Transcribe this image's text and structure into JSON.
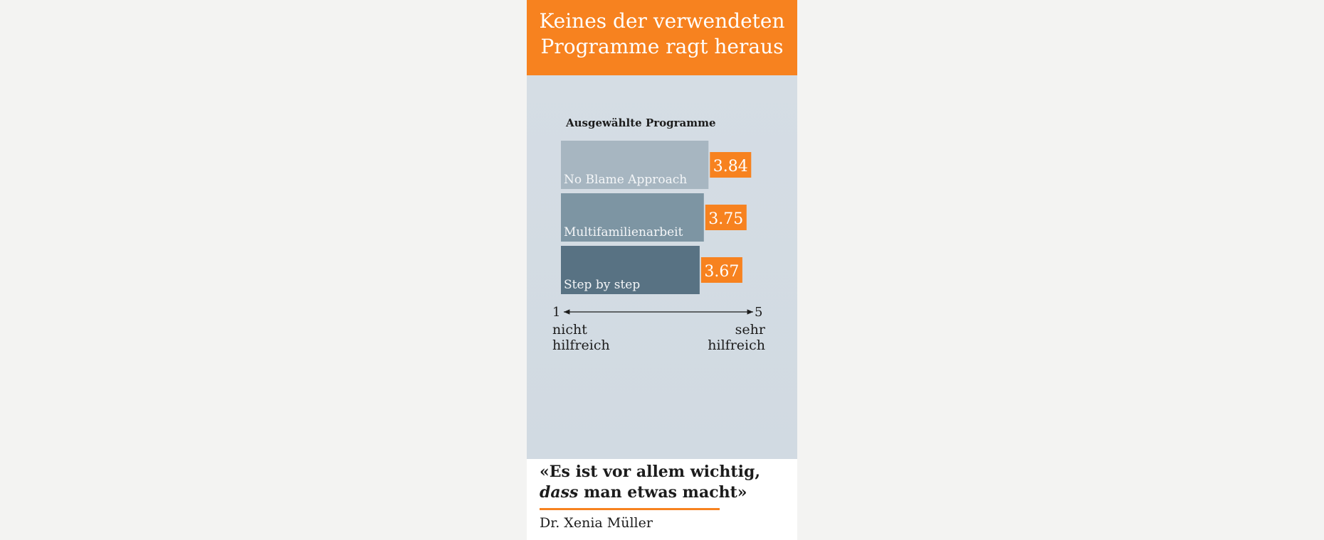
{
  "header": {
    "title_line1": "Keines der verwendeten",
    "title_line2": "Programme ragt heraus"
  },
  "chart_data": {
    "type": "bar",
    "orientation": "horizontal",
    "title": "Ausgewählte Programme",
    "categories": [
      "No Blame Approach",
      "Multifamilienarbeit",
      "Step by step"
    ],
    "values": [
      3.84,
      3.75,
      3.67
    ],
    "value_labels": [
      "3.84",
      "3.75",
      "3.67"
    ],
    "xlim": [
      1,
      5
    ],
    "scale_min_label": "1",
    "scale_max_label": "5",
    "scale_min_text_line1": "nicht",
    "scale_min_text_line2": "hilfreich",
    "scale_max_text_line1": "sehr",
    "scale_max_text_line2": "hilfreich",
    "colors": {
      "bars": [
        "#a7b6c1",
        "#7d95a3",
        "#587283"
      ],
      "value_box": "#f7821f",
      "bar_text": "#f4f6f8",
      "text": "#1c1c1c"
    }
  },
  "quote": {
    "line1": "«Es ist vor allem wichtig,",
    "line2_emph": "dass",
    "line2_rest": " man etwas macht»"
  },
  "author": "Dr. Xenia Müller",
  "colors": {
    "accent": "#f7821f",
    "chart_bg": "#d3dbe3"
  }
}
